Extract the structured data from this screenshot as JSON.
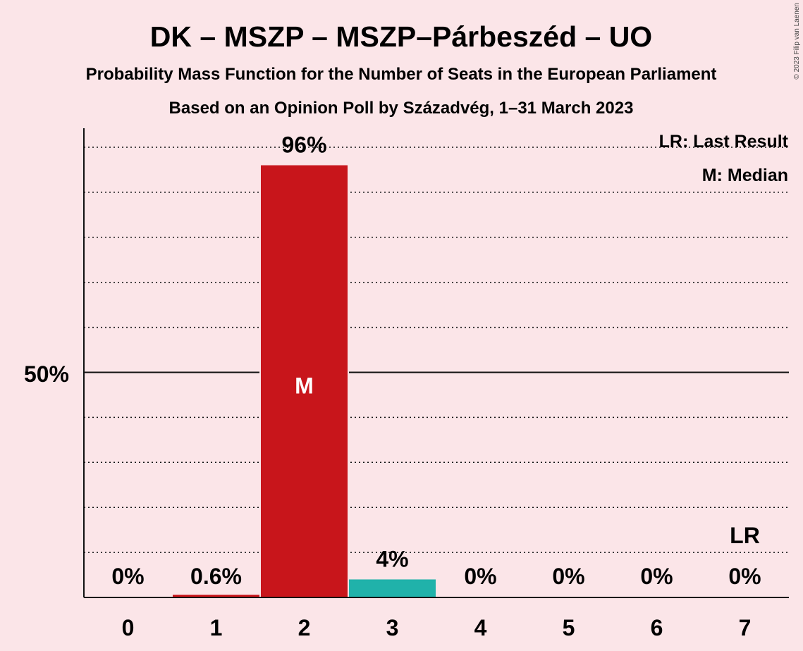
{
  "chart_data": {
    "type": "bar",
    "title": "DK – MSZP – MSZP–Párbeszéd – UO",
    "subtitle": "Probability Mass Function for the Number of Seats in the European Parliament",
    "subtitle2": "Based on an Opinion Poll by Századvég, 1–31 March 2023",
    "copyright": "© 2023 Filip van Laenen",
    "categories": [
      "0",
      "1",
      "2",
      "3",
      "4",
      "5",
      "6",
      "7"
    ],
    "values": [
      0,
      0.6,
      96,
      4,
      0,
      0,
      0,
      0
    ],
    "value_labels": [
      "0%",
      "0.6%",
      "96%",
      "4%",
      "0%",
      "0%",
      "0%",
      "0%"
    ],
    "bar_colors": [
      "#c8151b",
      "#c8151b",
      "#c8151b",
      "#20b2aa",
      "#c8151b",
      "#c8151b",
      "#c8151b",
      "#c8151b"
    ],
    "ylim": [
      0,
      105
    ],
    "ytick_label": "50%",
    "ytick_value": 50,
    "grid_step": 10,
    "grid": true,
    "median_index": 2,
    "median_marker": "M",
    "last_result_index": 7,
    "last_result_marker": "LR",
    "legend": [
      "LR: Last Result",
      "M: Median"
    ],
    "legend_position": "top-right",
    "background_color": "#fbe5e8"
  }
}
